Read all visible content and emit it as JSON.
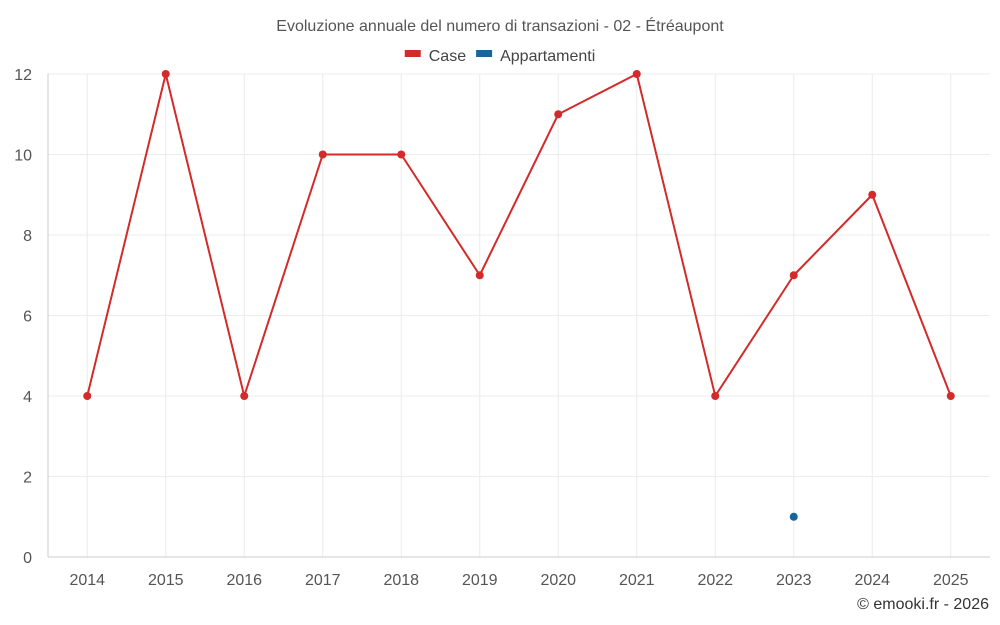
{
  "chart_data": {
    "type": "line",
    "title": "Evoluzione annuale del numero di transazioni - 02 - Étréaupont",
    "categories": [
      "2014",
      "2015",
      "2016",
      "2017",
      "2018",
      "2019",
      "2020",
      "2021",
      "2022",
      "2023",
      "2024",
      "2025"
    ],
    "series": [
      {
        "name": "Case",
        "color": "#d32a2a",
        "values": [
          4,
          12,
          4,
          10,
          10,
          7,
          11,
          12,
          4,
          7,
          9,
          4
        ]
      },
      {
        "name": "Appartamenti",
        "color": "#1565a0",
        "values": [
          null,
          null,
          null,
          null,
          null,
          null,
          null,
          null,
          null,
          1,
          null,
          null
        ]
      }
    ],
    "ylim": [
      0,
      12
    ],
    "yticks": [
      0,
      2,
      4,
      6,
      8,
      10,
      12
    ],
    "xlabel": "",
    "ylabel": "",
    "grid": true,
    "legend": "top-center"
  },
  "credit": "© emooki.fr - 2026"
}
